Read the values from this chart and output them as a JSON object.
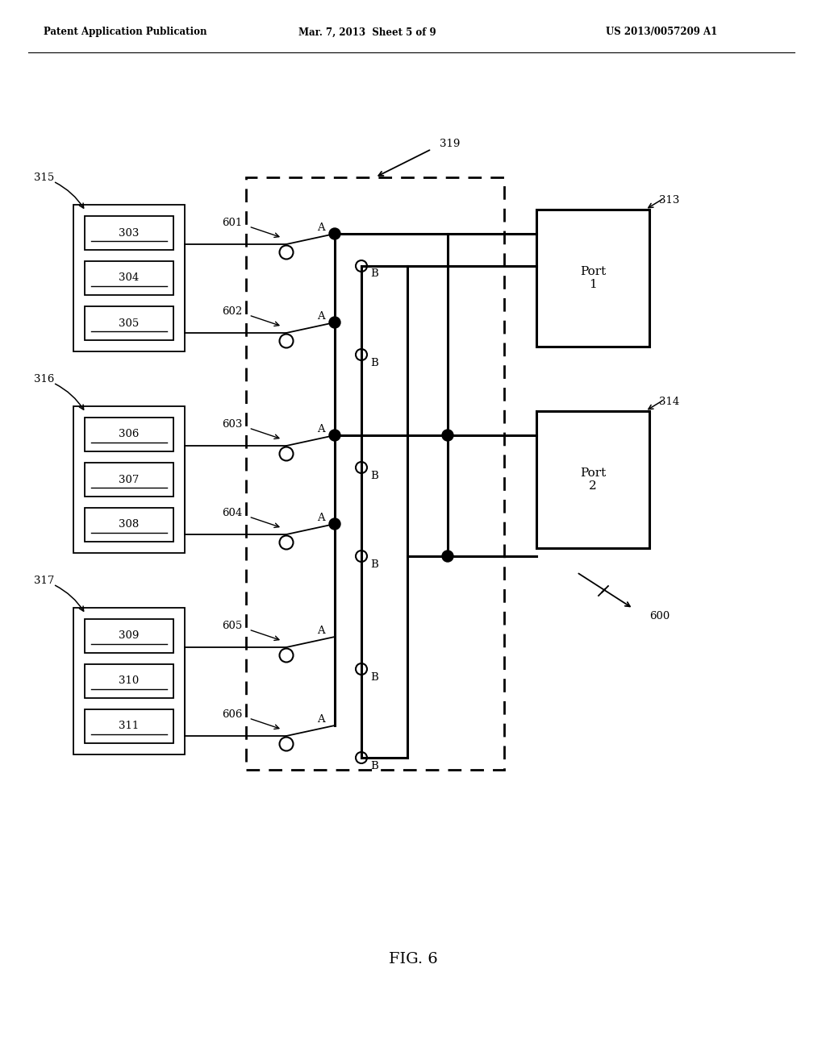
{
  "bg_color": "#ffffff",
  "line_color": "#000000",
  "header_left": "Patent Application Publication",
  "header_mid": "Mar. 7, 2013  Sheet 5 of 9",
  "header_right": "US 2013/0057209 A1",
  "fig_label": "FIG. 6",
  "label_319": "319",
  "label_315": "315",
  "label_316": "316",
  "label_317": "317",
  "label_313": "313",
  "label_314": "314",
  "label_600": "600",
  "boxes_group1": [
    "303",
    "304",
    "305"
  ],
  "boxes_group2": [
    "306",
    "307",
    "308"
  ],
  "boxes_group3": [
    "309",
    "310",
    "311"
  ],
  "switches": [
    "601",
    "602",
    "603",
    "604",
    "605",
    "606"
  ],
  "port_labels": [
    "Port\n1",
    "Port\n2"
  ]
}
